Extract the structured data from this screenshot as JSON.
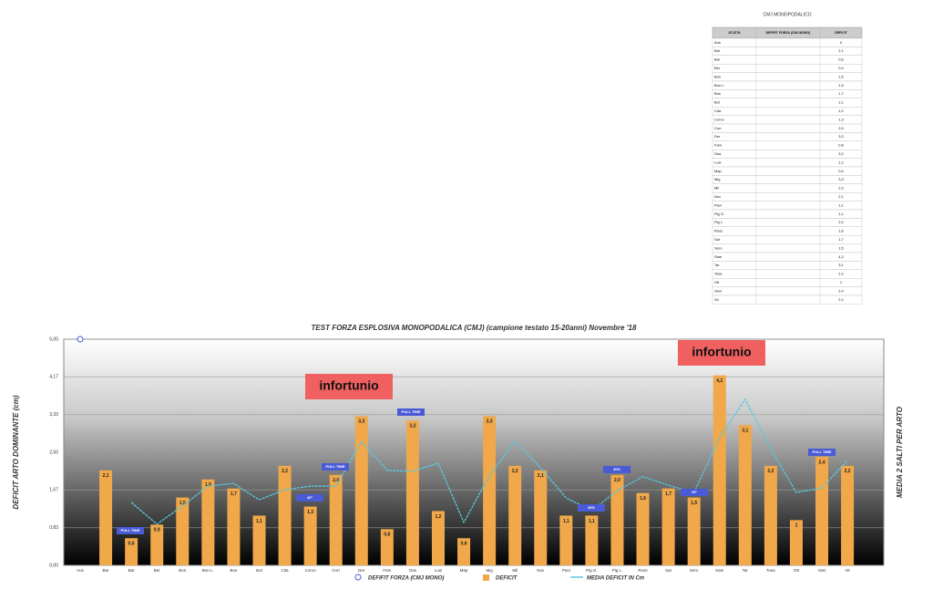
{
  "chart_data": {
    "type": "bar",
    "title": "TEST FORZA ESPLOSIVA MONOPODALICA (CMJ)  (campione testato 15-20anni) Novembre '18",
    "y_label": "DEFICIT ARTO DOMINANTE (cm)",
    "y2_label": "MEDIA 2 SALTI PER ARTO",
    "categories": [
      "Aus",
      "Bar",
      "Bar",
      "Ber",
      "Bon",
      "Bon L.",
      "Bos",
      "Bot",
      "Cita",
      "Corvo",
      "Corr",
      "Der",
      "Fam",
      "Gas",
      "Lusi",
      "Map",
      "Mig",
      "Mil",
      "Nov",
      "Pavi",
      "Pig G.",
      "Pig L.",
      "Ross",
      "Sar",
      "Sero",
      "Sam",
      "Tar",
      "Tosa",
      "Ott",
      "Vani",
      "Vit"
    ],
    "ylim": [
      0,
      5
    ],
    "yticks": [
      {
        "value": 0,
        "label": "0,00"
      },
      {
        "value": 0.83,
        "label": "0,83"
      },
      {
        "value": 1.67,
        "label": "1,67"
      },
      {
        "value": 2.5,
        "label": "2,50"
      },
      {
        "value": 3.33,
        "label": "3,33"
      },
      {
        "value": 4.17,
        "label": "4,17"
      },
      {
        "value": 5,
        "label": "5,00"
      }
    ],
    "grid": true,
    "series": [
      {
        "name": "DEFIFIT FORZA (CMJ MONO)",
        "type": "scatter",
        "color": "#4a5bd6",
        "values": [
          5,
          null,
          null,
          null,
          null,
          null,
          null,
          null,
          null,
          null,
          null,
          null,
          null,
          null,
          null,
          null,
          null,
          null,
          null,
          null,
          null,
          null,
          null,
          null,
          null,
          null,
          null,
          null,
          null,
          null,
          null
        ]
      },
      {
        "name": "DEFICIT",
        "type": "bar",
        "color": "#f0a84a",
        "values": [
          null,
          2.1,
          0.6,
          0.9,
          1.5,
          1.9,
          1.7,
          1.1,
          2.2,
          1.3,
          2.0,
          3.3,
          0.8,
          3.2,
          1.2,
          0.6,
          3.3,
          2.2,
          2.1,
          1.1,
          1.1,
          2.0,
          1.6,
          1.7,
          1.5,
          4.2,
          3.1,
          2.2,
          1.0,
          2.4,
          2.2
        ],
        "value_labels": [
          null,
          "2,1",
          "0,6",
          "0,9",
          "1,5",
          "1,9",
          "1,7",
          "1,1",
          "2,2",
          "1,3",
          "2,0",
          "3,3",
          "0,8",
          "3,2",
          "1,2",
          "0,6",
          "3,3",
          "2,2",
          "2,1",
          "1,1",
          "1,1",
          "2,0",
          "1,6",
          "1,7",
          "1,5",
          "4,2",
          "3,1",
          "2,2",
          "1",
          "2,4",
          "2,2"
        ]
      },
      {
        "name": "MEDIA DEFICIT IN Cm",
        "type": "line",
        "color": "#58c8e0",
        "values": [
          null,
          null,
          1.39,
          0.91,
          1.31,
          1.75,
          1.81,
          1.45,
          1.67,
          1.75,
          1.75,
          2.74,
          2.1,
          2.08,
          2.26,
          0.95,
          1.98,
          2.74,
          2.16,
          1.49,
          1.21,
          1.65,
          1.96,
          1.77,
          1.61,
          2.82,
          3.67,
          2.58,
          1.61,
          1.71,
          2.32
        ]
      }
    ],
    "annotations": [
      "infortunio",
      "infortunio",
      "PULL TIME",
      "40°",
      "PULL TIME",
      "PULL TIME",
      "40%",
      "40%",
      "25°",
      "PULL TIME"
    ]
  },
  "table": {
    "title": "CMJ MONOPODALICO",
    "headers": [
      "ATLETA",
      "DEFIFIT FORZA (CMJ MONO)",
      "DEFICIT"
    ],
    "rows": [
      [
        "Aus",
        "0"
      ],
      [
        "Bar",
        "2,1"
      ],
      [
        "Bar",
        "0,6"
      ],
      [
        "Ber",
        "0,9"
      ],
      [
        "Bon",
        "1,5"
      ],
      [
        "Bon L.",
        "1,9"
      ],
      [
        "Bos",
        "1,7"
      ],
      [
        "Bot",
        "1,1"
      ],
      [
        "Cita",
        "2,2"
      ],
      [
        "Corvo",
        "1,3"
      ],
      [
        "Corr",
        "2,0"
      ],
      [
        "Der",
        "3,3"
      ],
      [
        "Fam",
        "0,8"
      ],
      [
        "Gas",
        "3,2"
      ],
      [
        "Lusi",
        "1,2"
      ],
      [
        "Map",
        "0,6"
      ],
      [
        "Mig",
        "3,3"
      ],
      [
        "Mil",
        "2,2"
      ],
      [
        "Nov",
        "2,1"
      ],
      [
        "Pavi",
        "1,1"
      ],
      [
        "Pig G.",
        "1,1"
      ],
      [
        "Pig L.",
        "2,0"
      ],
      [
        "Ross",
        "1,6"
      ],
      [
        "Sar",
        "1,7"
      ],
      [
        "Sero",
        "1,5"
      ],
      [
        "Sam",
        "4,2"
      ],
      [
        "Tar",
        "3,1"
      ],
      [
        "Tosa",
        "2,2"
      ],
      [
        "Ott",
        "1"
      ],
      [
        "Vani",
        "2,4"
      ],
      [
        "Vit",
        "2,2"
      ]
    ]
  }
}
